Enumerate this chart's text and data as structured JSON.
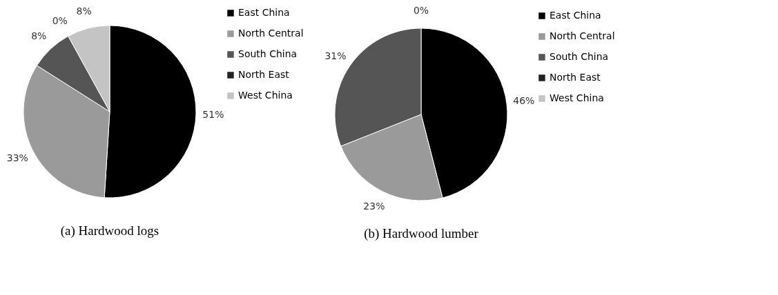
{
  "chart_data": [
    {
      "type": "pie",
      "title": "(a) Hardwood logs",
      "categories": [
        "East China",
        "North Central",
        "South China",
        "North East",
        "West China"
      ],
      "values": [
        51,
        33,
        8,
        0,
        8
      ],
      "value_labels": [
        "51%",
        "33%",
        "8%",
        "0%",
        "8%"
      ],
      "colors": [
        "#000000",
        "#9a9a9a",
        "#555555",
        "#222222",
        "#c4c4c4"
      ],
      "legend": "right"
    },
    {
      "type": "pie",
      "title": "(b) Hardwood lumber",
      "categories": [
        "East China",
        "North Central",
        "South China",
        "North East",
        "West China"
      ],
      "values": [
        46,
        23,
        31,
        0,
        0
      ],
      "value_labels": [
        "46%",
        "23%",
        "31%",
        "0%",
        null
      ],
      "colors": [
        "#000000",
        "#9a9a9a",
        "#555555",
        "#222222",
        "#c4c4c4"
      ],
      "legend": "right"
    }
  ]
}
